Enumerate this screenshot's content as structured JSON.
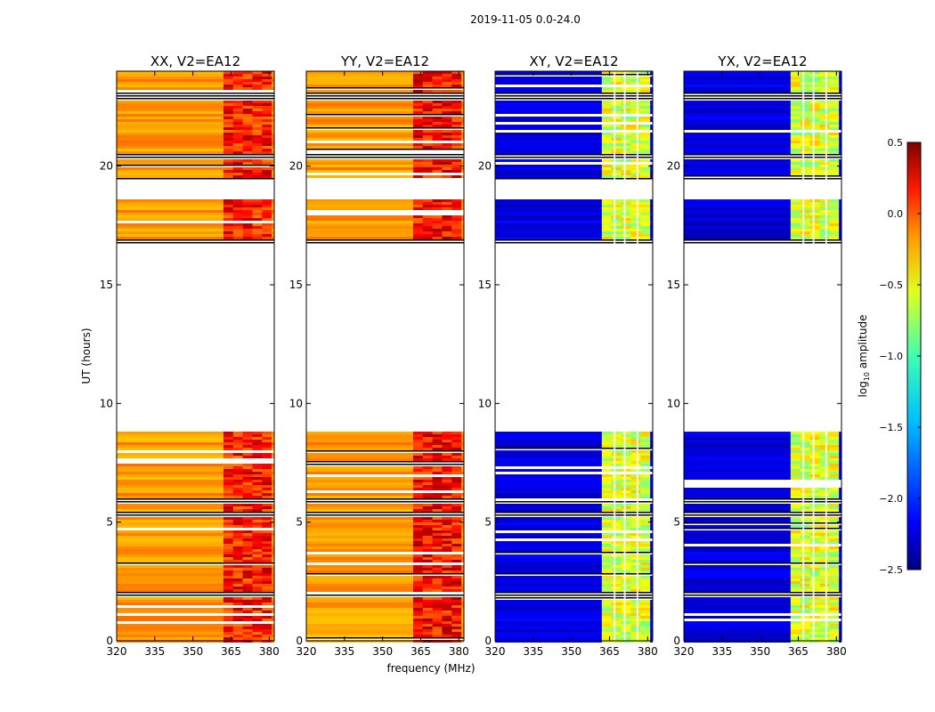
{
  "figure": {
    "suptitle": "2019-11-05 0.0-24.0",
    "xlabel": "frequency (MHz)",
    "ylabel": "UT (hours)",
    "colorbar_label": "log10 amplitude"
  },
  "chart_data": {
    "type": "heatmap",
    "shared": {
      "xlim": [
        320,
        382
      ],
      "xticks": [
        320,
        335,
        350,
        365,
        380
      ],
      "ylim": [
        0,
        24
      ],
      "yticks": [
        0,
        5,
        10,
        15,
        20
      ],
      "data_gap_hours": [
        8.9,
        16.8
      ],
      "flagged_hour_ranges": [
        [
          1.9,
          2.1
        ],
        [
          5.3,
          5.5
        ],
        [
          5.8,
          6.0
        ],
        [
          19.4,
          19.6
        ],
        [
          20.3,
          20.6
        ],
        [
          22.8,
          23.1
        ],
        [
          16.8,
          17.0
        ]
      ],
      "rfi_band_mhz": [
        362,
        381
      ],
      "rfi_band_dividers_mhz": [
        367,
        371,
        376
      ]
    },
    "panels": [
      {
        "title": "XX, V2=EA12",
        "kind": "parallel",
        "background_level": -0.4,
        "band_level": 0.0
      },
      {
        "title": "YY, V2=EA12",
        "kind": "parallel",
        "background_level": -0.4,
        "band_level": 0.05
      },
      {
        "title": "XY, V2=EA12",
        "kind": "cross",
        "background_level": -2.3,
        "band_level": -0.8
      },
      {
        "title": "YX, V2=EA12",
        "kind": "cross",
        "background_level": -2.3,
        "band_level": -0.8
      }
    ],
    "colorbar": {
      "range": [
        -2.5,
        0.5
      ],
      "ticks": [
        "0.5",
        "0.0",
        "−0.5",
        "−1.0",
        "−1.5",
        "−2.0",
        "−2.5"
      ],
      "tick_values": [
        0.5,
        0.0,
        -0.5,
        -1.0,
        -1.5,
        -2.0,
        -2.5
      ],
      "colormap": "jet"
    }
  }
}
